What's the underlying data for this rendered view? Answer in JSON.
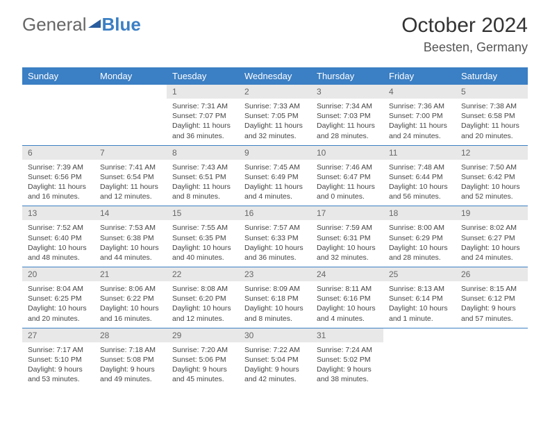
{
  "logo": {
    "part1": "General",
    "part2": "Blue"
  },
  "title": "October 2024",
  "location": "Beesten, Germany",
  "header_bg": "#3b7fc4",
  "header_fg": "#ffffff",
  "daynum_bg": "#e8e8e8",
  "row_border": "#3b7fc4",
  "body_bg": "#ffffff",
  "text_color": "#444444",
  "font_family": "Arial",
  "day_headers": [
    "Sunday",
    "Monday",
    "Tuesday",
    "Wednesday",
    "Thursday",
    "Friday",
    "Saturday"
  ],
  "weeks": [
    [
      null,
      null,
      {
        "n": "1",
        "sr": "Sunrise: 7:31 AM",
        "ss": "Sunset: 7:07 PM",
        "dl": "Daylight: 11 hours and 36 minutes."
      },
      {
        "n": "2",
        "sr": "Sunrise: 7:33 AM",
        "ss": "Sunset: 7:05 PM",
        "dl": "Daylight: 11 hours and 32 minutes."
      },
      {
        "n": "3",
        "sr": "Sunrise: 7:34 AM",
        "ss": "Sunset: 7:03 PM",
        "dl": "Daylight: 11 hours and 28 minutes."
      },
      {
        "n": "4",
        "sr": "Sunrise: 7:36 AM",
        "ss": "Sunset: 7:00 PM",
        "dl": "Daylight: 11 hours and 24 minutes."
      },
      {
        "n": "5",
        "sr": "Sunrise: 7:38 AM",
        "ss": "Sunset: 6:58 PM",
        "dl": "Daylight: 11 hours and 20 minutes."
      }
    ],
    [
      {
        "n": "6",
        "sr": "Sunrise: 7:39 AM",
        "ss": "Sunset: 6:56 PM",
        "dl": "Daylight: 11 hours and 16 minutes."
      },
      {
        "n": "7",
        "sr": "Sunrise: 7:41 AM",
        "ss": "Sunset: 6:54 PM",
        "dl": "Daylight: 11 hours and 12 minutes."
      },
      {
        "n": "8",
        "sr": "Sunrise: 7:43 AM",
        "ss": "Sunset: 6:51 PM",
        "dl": "Daylight: 11 hours and 8 minutes."
      },
      {
        "n": "9",
        "sr": "Sunrise: 7:45 AM",
        "ss": "Sunset: 6:49 PM",
        "dl": "Daylight: 11 hours and 4 minutes."
      },
      {
        "n": "10",
        "sr": "Sunrise: 7:46 AM",
        "ss": "Sunset: 6:47 PM",
        "dl": "Daylight: 11 hours and 0 minutes."
      },
      {
        "n": "11",
        "sr": "Sunrise: 7:48 AM",
        "ss": "Sunset: 6:44 PM",
        "dl": "Daylight: 10 hours and 56 minutes."
      },
      {
        "n": "12",
        "sr": "Sunrise: 7:50 AM",
        "ss": "Sunset: 6:42 PM",
        "dl": "Daylight: 10 hours and 52 minutes."
      }
    ],
    [
      {
        "n": "13",
        "sr": "Sunrise: 7:52 AM",
        "ss": "Sunset: 6:40 PM",
        "dl": "Daylight: 10 hours and 48 minutes."
      },
      {
        "n": "14",
        "sr": "Sunrise: 7:53 AM",
        "ss": "Sunset: 6:38 PM",
        "dl": "Daylight: 10 hours and 44 minutes."
      },
      {
        "n": "15",
        "sr": "Sunrise: 7:55 AM",
        "ss": "Sunset: 6:35 PM",
        "dl": "Daylight: 10 hours and 40 minutes."
      },
      {
        "n": "16",
        "sr": "Sunrise: 7:57 AM",
        "ss": "Sunset: 6:33 PM",
        "dl": "Daylight: 10 hours and 36 minutes."
      },
      {
        "n": "17",
        "sr": "Sunrise: 7:59 AM",
        "ss": "Sunset: 6:31 PM",
        "dl": "Daylight: 10 hours and 32 minutes."
      },
      {
        "n": "18",
        "sr": "Sunrise: 8:00 AM",
        "ss": "Sunset: 6:29 PM",
        "dl": "Daylight: 10 hours and 28 minutes."
      },
      {
        "n": "19",
        "sr": "Sunrise: 8:02 AM",
        "ss": "Sunset: 6:27 PM",
        "dl": "Daylight: 10 hours and 24 minutes."
      }
    ],
    [
      {
        "n": "20",
        "sr": "Sunrise: 8:04 AM",
        "ss": "Sunset: 6:25 PM",
        "dl": "Daylight: 10 hours and 20 minutes."
      },
      {
        "n": "21",
        "sr": "Sunrise: 8:06 AM",
        "ss": "Sunset: 6:22 PM",
        "dl": "Daylight: 10 hours and 16 minutes."
      },
      {
        "n": "22",
        "sr": "Sunrise: 8:08 AM",
        "ss": "Sunset: 6:20 PM",
        "dl": "Daylight: 10 hours and 12 minutes."
      },
      {
        "n": "23",
        "sr": "Sunrise: 8:09 AM",
        "ss": "Sunset: 6:18 PM",
        "dl": "Daylight: 10 hours and 8 minutes."
      },
      {
        "n": "24",
        "sr": "Sunrise: 8:11 AM",
        "ss": "Sunset: 6:16 PM",
        "dl": "Daylight: 10 hours and 4 minutes."
      },
      {
        "n": "25",
        "sr": "Sunrise: 8:13 AM",
        "ss": "Sunset: 6:14 PM",
        "dl": "Daylight: 10 hours and 1 minute."
      },
      {
        "n": "26",
        "sr": "Sunrise: 8:15 AM",
        "ss": "Sunset: 6:12 PM",
        "dl": "Daylight: 9 hours and 57 minutes."
      }
    ],
    [
      {
        "n": "27",
        "sr": "Sunrise: 7:17 AM",
        "ss": "Sunset: 5:10 PM",
        "dl": "Daylight: 9 hours and 53 minutes."
      },
      {
        "n": "28",
        "sr": "Sunrise: 7:18 AM",
        "ss": "Sunset: 5:08 PM",
        "dl": "Daylight: 9 hours and 49 minutes."
      },
      {
        "n": "29",
        "sr": "Sunrise: 7:20 AM",
        "ss": "Sunset: 5:06 PM",
        "dl": "Daylight: 9 hours and 45 minutes."
      },
      {
        "n": "30",
        "sr": "Sunrise: 7:22 AM",
        "ss": "Sunset: 5:04 PM",
        "dl": "Daylight: 9 hours and 42 minutes."
      },
      {
        "n": "31",
        "sr": "Sunrise: 7:24 AM",
        "ss": "Sunset: 5:02 PM",
        "dl": "Daylight: 9 hours and 38 minutes."
      },
      null,
      null
    ]
  ]
}
